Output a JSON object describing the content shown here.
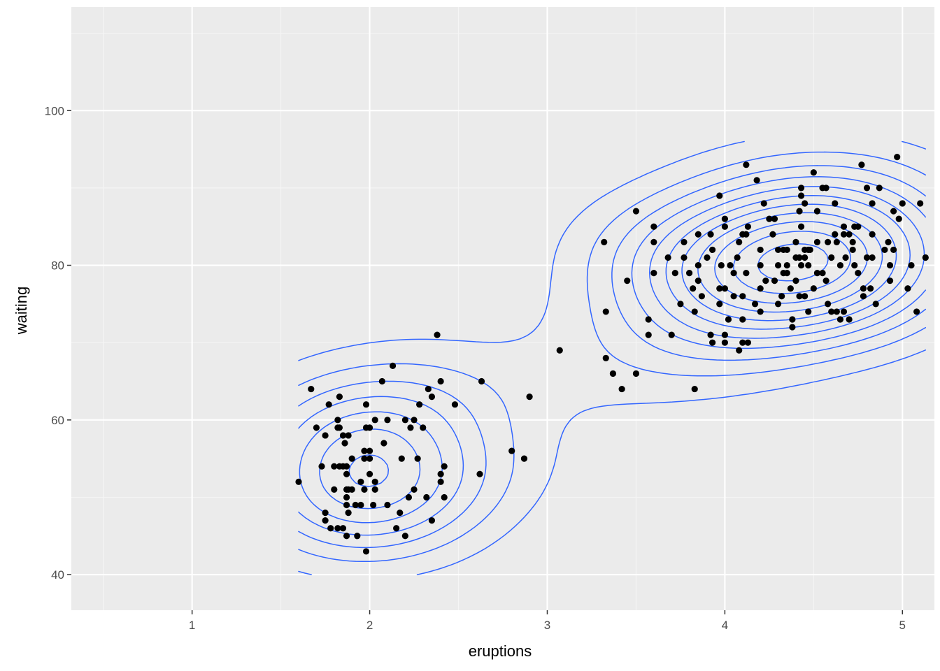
{
  "chart_data": {
    "type": "scatter",
    "xlabel": "eruptions",
    "ylabel": "waiting",
    "xlim": [
      0.32,
      5.18
    ],
    "ylim": [
      35.4,
      113.4
    ],
    "x_ticks": [
      1,
      2,
      3,
      4,
      5
    ],
    "x_tick_labels": [
      "1",
      "2",
      "3",
      "4",
      "5"
    ],
    "y_ticks": [
      40,
      60,
      80,
      100
    ],
    "y_tick_labels": [
      "40",
      "60",
      "80",
      "100"
    ],
    "grid": true,
    "legend": "none",
    "points": [
      [
        1.6,
        52
      ],
      [
        1.67,
        64
      ],
      [
        1.7,
        59
      ],
      [
        1.73,
        54
      ],
      [
        1.75,
        48
      ],
      [
        1.75,
        47
      ],
      [
        1.75,
        58
      ],
      [
        1.77,
        62
      ],
      [
        1.78,
        46
      ],
      [
        1.8,
        54
      ],
      [
        1.8,
        51
      ],
      [
        1.82,
        60
      ],
      [
        1.82,
        59
      ],
      [
        1.82,
        46
      ],
      [
        1.83,
        54
      ],
      [
        1.83,
        63
      ],
      [
        1.83,
        59
      ],
      [
        1.85,
        54
      ],
      [
        1.85,
        58
      ],
      [
        1.85,
        46
      ],
      [
        1.86,
        57
      ],
      [
        1.87,
        54
      ],
      [
        1.87,
        53
      ],
      [
        1.87,
        51
      ],
      [
        1.87,
        50
      ],
      [
        1.87,
        49
      ],
      [
        1.87,
        45
      ],
      [
        1.88,
        58
      ],
      [
        1.88,
        51
      ],
      [
        1.88,
        48
      ],
      [
        1.9,
        55
      ],
      [
        1.9,
        51
      ],
      [
        1.92,
        49
      ],
      [
        1.93,
        45
      ],
      [
        1.95,
        49
      ],
      [
        1.95,
        52
      ],
      [
        1.97,
        55
      ],
      [
        1.97,
        56
      ],
      [
        1.97,
        51
      ],
      [
        1.98,
        62
      ],
      [
        1.98,
        59
      ],
      [
        1.98,
        43
      ],
      [
        2.0,
        59
      ],
      [
        2.0,
        55
      ],
      [
        2.0,
        53
      ],
      [
        2.0,
        56
      ],
      [
        2.02,
        49
      ],
      [
        2.03,
        60
      ],
      [
        2.03,
        52
      ],
      [
        2.03,
        51
      ],
      [
        2.07,
        65
      ],
      [
        2.08,
        57
      ],
      [
        2.1,
        60
      ],
      [
        2.1,
        49
      ],
      [
        2.13,
        67
      ],
      [
        2.15,
        46
      ],
      [
        2.17,
        48
      ],
      [
        2.18,
        55
      ],
      [
        2.2,
        60
      ],
      [
        2.2,
        45
      ],
      [
        2.22,
        50
      ],
      [
        2.23,
        59
      ],
      [
        2.25,
        60
      ],
      [
        2.25,
        51
      ],
      [
        2.27,
        55
      ],
      [
        2.28,
        62
      ],
      [
        2.3,
        59
      ],
      [
        2.32,
        50
      ],
      [
        2.33,
        64
      ],
      [
        2.35,
        63
      ],
      [
        2.35,
        47
      ],
      [
        2.38,
        71
      ],
      [
        2.4,
        65
      ],
      [
        2.4,
        53
      ],
      [
        2.4,
        52
      ],
      [
        2.42,
        54
      ],
      [
        2.42,
        50
      ],
      [
        2.48,
        62
      ],
      [
        2.62,
        53
      ],
      [
        2.63,
        65
      ],
      [
        2.8,
        56
      ],
      [
        2.87,
        55
      ],
      [
        2.9,
        63
      ],
      [
        3.07,
        69
      ],
      [
        3.32,
        83
      ],
      [
        3.33,
        68
      ],
      [
        3.33,
        74
      ],
      [
        3.37,
        66
      ],
      [
        3.42,
        64
      ],
      [
        3.45,
        78
      ],
      [
        3.5,
        87
      ],
      [
        3.5,
        66
      ],
      [
        3.57,
        73
      ],
      [
        3.57,
        71
      ],
      [
        3.6,
        85
      ],
      [
        3.6,
        83
      ],
      [
        3.6,
        79
      ],
      [
        3.68,
        81
      ],
      [
        3.7,
        71
      ],
      [
        3.72,
        79
      ],
      [
        3.75,
        75
      ],
      [
        3.77,
        83
      ],
      [
        3.77,
        81
      ],
      [
        3.8,
        79
      ],
      [
        3.82,
        77
      ],
      [
        3.83,
        74
      ],
      [
        3.83,
        64
      ],
      [
        3.85,
        84
      ],
      [
        3.85,
        80
      ],
      [
        3.85,
        78
      ],
      [
        3.87,
        76
      ],
      [
        3.9,
        81
      ],
      [
        3.92,
        84
      ],
      [
        3.92,
        71
      ],
      [
        3.93,
        82
      ],
      [
        3.93,
        70
      ],
      [
        3.97,
        89
      ],
      [
        3.97,
        77
      ],
      [
        3.97,
        75
      ],
      [
        3.98,
        80
      ],
      [
        4.0,
        86
      ],
      [
        4.0,
        85
      ],
      [
        4.0,
        77
      ],
      [
        4.0,
        71
      ],
      [
        4.0,
        70
      ],
      [
        4.02,
        73
      ],
      [
        4.03,
        80
      ],
      [
        4.05,
        76
      ],
      [
        4.05,
        79
      ],
      [
        4.07,
        81
      ],
      [
        4.08,
        83
      ],
      [
        4.08,
        69
      ],
      [
        4.1,
        84
      ],
      [
        4.1,
        76
      ],
      [
        4.1,
        73
      ],
      [
        4.1,
        70
      ],
      [
        4.12,
        93
      ],
      [
        4.12,
        84
      ],
      [
        4.12,
        79
      ],
      [
        4.13,
        70
      ],
      [
        4.13,
        85
      ],
      [
        4.17,
        75
      ],
      [
        4.18,
        91
      ],
      [
        4.2,
        82
      ],
      [
        4.2,
        80
      ],
      [
        4.2,
        77
      ],
      [
        4.2,
        74
      ],
      [
        4.22,
        88
      ],
      [
        4.23,
        78
      ],
      [
        4.25,
        86
      ],
      [
        4.27,
        84
      ],
      [
        4.28,
        86
      ],
      [
        4.28,
        78
      ],
      [
        4.3,
        82
      ],
      [
        4.3,
        75
      ],
      [
        4.3,
        80
      ],
      [
        4.32,
        76
      ],
      [
        4.33,
        82
      ],
      [
        4.33,
        79
      ],
      [
        4.35,
        82
      ],
      [
        4.35,
        80
      ],
      [
        4.35,
        79
      ],
      [
        4.37,
        77
      ],
      [
        4.38,
        73
      ],
      [
        4.38,
        72
      ],
      [
        4.4,
        81
      ],
      [
        4.4,
        78
      ],
      [
        4.4,
        83
      ],
      [
        4.42,
        87
      ],
      [
        4.42,
        81
      ],
      [
        4.42,
        76
      ],
      [
        4.43,
        90
      ],
      [
        4.43,
        85
      ],
      [
        4.43,
        89
      ],
      [
        4.43,
        80
      ],
      [
        4.45,
        88
      ],
      [
        4.45,
        81
      ],
      [
        4.45,
        82
      ],
      [
        4.45,
        76
      ],
      [
        4.47,
        82
      ],
      [
        4.47,
        80
      ],
      [
        4.47,
        74
      ],
      [
        4.48,
        82
      ],
      [
        4.5,
        92
      ],
      [
        4.5,
        77
      ],
      [
        4.52,
        87
      ],
      [
        4.52,
        83
      ],
      [
        4.52,
        79
      ],
      [
        4.55,
        90
      ],
      [
        4.55,
        79
      ],
      [
        4.57,
        90
      ],
      [
        4.57,
        78
      ],
      [
        4.58,
        83
      ],
      [
        4.58,
        75
      ],
      [
        4.6,
        81
      ],
      [
        4.6,
        74
      ],
      [
        4.62,
        84
      ],
      [
        4.62,
        88
      ],
      [
        4.63,
        83
      ],
      [
        4.63,
        74
      ],
      [
        4.65,
        80
      ],
      [
        4.65,
        73
      ],
      [
        4.67,
        84
      ],
      [
        4.67,
        85
      ],
      [
        4.67,
        74
      ],
      [
        4.68,
        81
      ],
      [
        4.7,
        84
      ],
      [
        4.7,
        73
      ],
      [
        4.72,
        83
      ],
      [
        4.72,
        82
      ],
      [
        4.73,
        80
      ],
      [
        4.73,
        85
      ],
      [
        4.75,
        85
      ],
      [
        4.75,
        79
      ],
      [
        4.77,
        93
      ],
      [
        4.78,
        76
      ],
      [
        4.78,
        77
      ],
      [
        4.8,
        90
      ],
      [
        4.8,
        81
      ],
      [
        4.82,
        77
      ],
      [
        4.83,
        88
      ],
      [
        4.83,
        84
      ],
      [
        4.83,
        81
      ],
      [
        4.85,
        75
      ],
      [
        4.87,
        90
      ],
      [
        4.9,
        82
      ],
      [
        4.92,
        83
      ],
      [
        4.93,
        78
      ],
      [
        4.93,
        80
      ],
      [
        4.95,
        87
      ],
      [
        4.95,
        82
      ],
      [
        4.97,
        94
      ],
      [
        4.98,
        86
      ],
      [
        5.0,
        88
      ],
      [
        5.03,
        77
      ],
      [
        5.05,
        80
      ],
      [
        5.08,
        74
      ],
      [
        5.1,
        88
      ],
      [
        5.13,
        81
      ]
    ],
    "series": [
      {
        "values_kind": "density_contours",
        "color": "#3366ff"
      }
    ],
    "colors": {
      "panel_background": "#ebebeb",
      "grid_major": "#ffffff",
      "grid_minor": "#f5f5f5",
      "points": "#000000",
      "contours": "#3366ff"
    }
  }
}
